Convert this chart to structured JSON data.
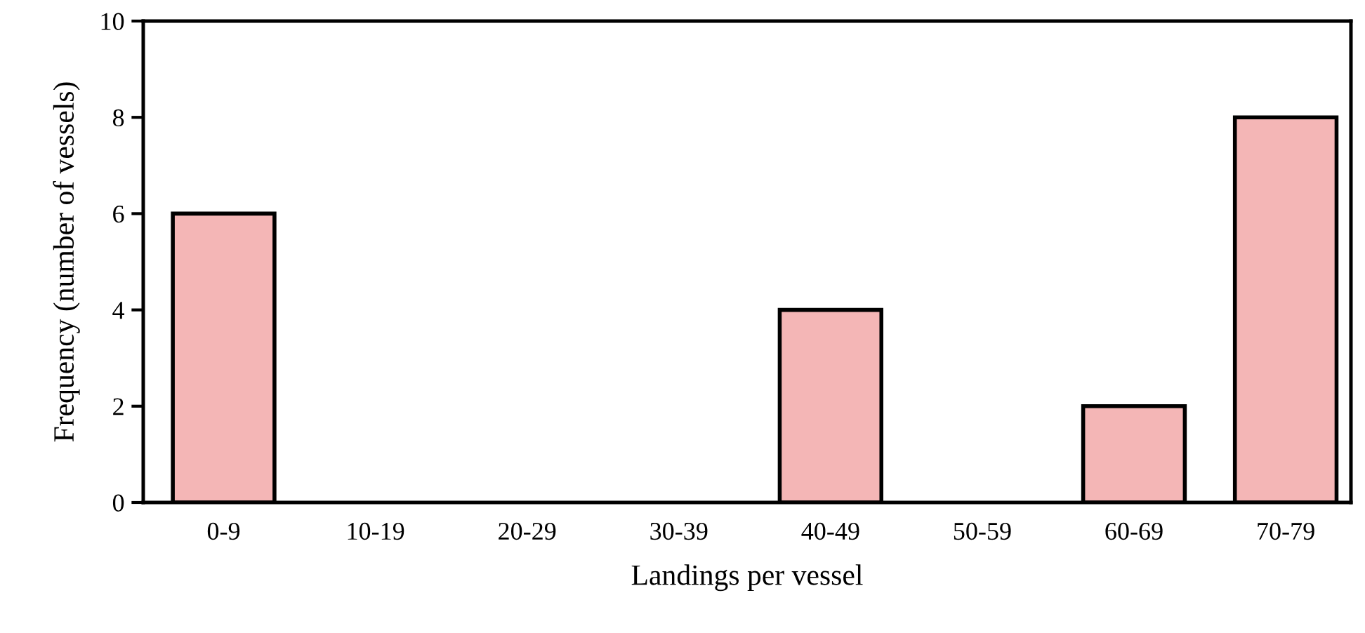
{
  "chart_data": {
    "type": "bar",
    "xlabel": "Landings per vessel",
    "ylabel": "Frequency (number of vessels)",
    "categories": [
      "0-9",
      "10-19",
      "20-29",
      "30-39",
      "40-49",
      "50-59",
      "60-69",
      "70-79"
    ],
    "values": [
      6,
      0,
      0,
      0,
      4,
      0,
      2,
      8
    ],
    "color": "#f4b6b6",
    "ylim": [
      0,
      10
    ],
    "yticks": [
      0,
      2,
      4,
      6,
      8,
      10
    ],
    "grid": false
  }
}
